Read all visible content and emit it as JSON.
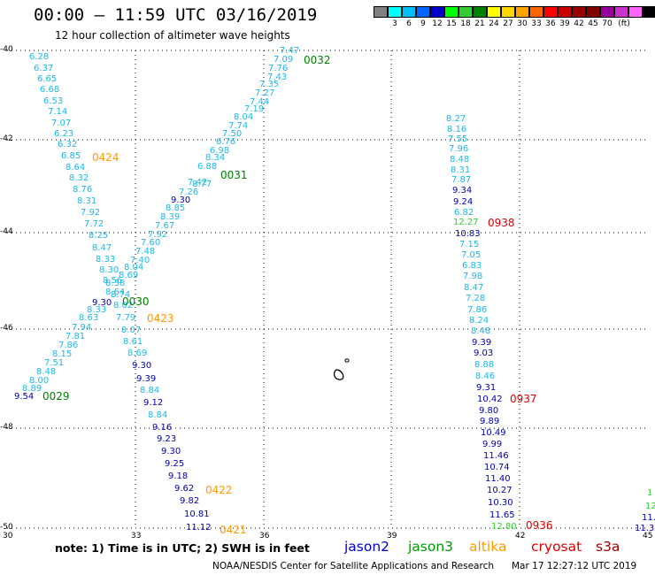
{
  "header": {
    "title": "00:00 – 11:59 UTC 03/16/2019",
    "subtitle": "12 hour collection of altimeter wave heights"
  },
  "colorbar": {
    "segments": [
      "#808080",
      "#00ffff",
      "#00bfff",
      "#0066ff",
      "#0000cd",
      "#00ff00",
      "#33cc33",
      "#008000",
      "#ffff00",
      "#ffd700",
      "#ffa500",
      "#ff6600",
      "#ff0000",
      "#cc0000",
      "#990000",
      "#800000",
      "#990099",
      "#cc33cc",
      "#ff66ff",
      "#000000"
    ],
    "labels": [
      "3",
      "6",
      "9",
      "12",
      "15",
      "18",
      "21",
      "24",
      "27",
      "30",
      "33",
      "36",
      "39",
      "42",
      "45",
      "70",
      "(ft)"
    ]
  },
  "map": {
    "lat_ticks": [
      "-40",
      "-42",
      "-44",
      "-46",
      "-48",
      "-50"
    ],
    "lon_ticks": [
      "30",
      "33",
      "36",
      "39",
      "42",
      "45"
    ],
    "colors": {
      "light_blue": "#1ab8e8",
      "dark_blue": "#0000aa",
      "green": "#008000",
      "light_green": "#33cc33",
      "orange": "#ff9900",
      "red": "#dd0000"
    },
    "tracks": [
      {
        "name": "track-a",
        "values": [
          {
            "v": "6.28",
            "c": "light_blue"
          },
          {
            "v": "6.37",
            "c": "light_blue"
          },
          {
            "v": "6.65",
            "c": "light_blue"
          },
          {
            "v": "6.68",
            "c": "light_blue"
          },
          {
            "v": "6.53",
            "c": "light_blue"
          },
          {
            "v": "7.14",
            "c": "light_blue"
          },
          {
            "v": "7.07",
            "c": "light_blue"
          },
          {
            "v": "6.23",
            "c": "light_blue"
          },
          {
            "v": "6.32",
            "c": "light_blue"
          },
          {
            "v": "6.85",
            "c": "light_blue"
          },
          {
            "v": "8.64",
            "c": "light_blue"
          },
          {
            "v": "8.32",
            "c": "light_blue"
          },
          {
            "v": "8.76",
            "c": "light_blue"
          },
          {
            "v": "8.31",
            "c": "light_blue"
          },
          {
            "v": "7.92",
            "c": "light_blue"
          },
          {
            "v": "7.72",
            "c": "light_blue"
          },
          {
            "v": "8.25",
            "c": "light_blue"
          },
          {
            "v": "8.47",
            "c": "light_blue"
          },
          {
            "v": "8.33",
            "c": "light_blue"
          },
          {
            "v": "8.30",
            "c": "light_blue"
          },
          {
            "v": "8.56",
            "c": "light_blue"
          },
          {
            "v": "8.64",
            "c": "light_blue"
          },
          {
            "v": "8.02",
            "c": "light_blue"
          },
          {
            "v": "7.79",
            "c": "light_blue"
          },
          {
            "v": "8.07",
            "c": "light_blue"
          },
          {
            "v": "8.61",
            "c": "light_blue"
          },
          {
            "v": "8.69",
            "c": "light_blue"
          },
          {
            "v": "9.30",
            "c": "dark_blue"
          },
          {
            "v": "9.39",
            "c": "dark_blue"
          },
          {
            "v": "8.84",
            "c": "light_blue"
          },
          {
            "v": "9.12",
            "c": "dark_blue"
          },
          {
            "v": "8.84",
            "c": "light_blue"
          },
          {
            "v": "9.16",
            "c": "dark_blue"
          },
          {
            "v": "9.23",
            "c": "dark_blue"
          },
          {
            "v": "9.30",
            "c": "dark_blue"
          },
          {
            "v": "9.25",
            "c": "dark_blue"
          },
          {
            "v": "9.18",
            "c": "dark_blue"
          },
          {
            "v": "9.62",
            "c": "dark_blue"
          },
          {
            "v": "9.82",
            "c": "dark_blue"
          },
          {
            "v": "10.81",
            "c": "dark_blue"
          },
          {
            "v": "11.12",
            "c": "dark_blue"
          }
        ]
      },
      {
        "name": "track-b",
        "values": [
          {
            "v": "7.47",
            "c": "light_blue"
          },
          {
            "v": "7.09",
            "c": "light_blue"
          },
          {
            "v": "7.76",
            "c": "light_blue"
          },
          {
            "v": "7.43",
            "c": "light_blue"
          },
          {
            "v": "7.35",
            "c": "light_blue"
          },
          {
            "v": "7.27",
            "c": "light_blue"
          },
          {
            "v": "7.44",
            "c": "light_blue"
          },
          {
            "v": "7.19",
            "c": "light_blue"
          },
          {
            "v": "8.04",
            "c": "light_blue"
          },
          {
            "v": "7.74",
            "c": "light_blue"
          },
          {
            "v": "7.50",
            "c": "light_blue"
          },
          {
            "v": "6.76",
            "c": "light_blue"
          },
          {
            "v": "6.98",
            "c": "light_blue"
          },
          {
            "v": "8.34",
            "c": "light_blue"
          },
          {
            "v": "6.88",
            "c": "light_blue"
          },
          {
            "v": "8.77",
            "c": "light_blue"
          },
          {
            "v": "7.42",
            "c": "light_blue"
          },
          {
            "v": "7.26",
            "c": "light_blue"
          },
          {
            "v": "9.30",
            "c": "dark_blue"
          },
          {
            "v": "8.85",
            "c": "light_blue"
          },
          {
            "v": "8.39",
            "c": "light_blue"
          },
          {
            "v": "7.67",
            "c": "light_blue"
          },
          {
            "v": "7.92",
            "c": "light_blue"
          },
          {
            "v": "7.60",
            "c": "light_blue"
          },
          {
            "v": "7.48",
            "c": "light_blue"
          },
          {
            "v": "7.40",
            "c": "light_blue"
          },
          {
            "v": "8.04",
            "c": "light_blue"
          },
          {
            "v": "8.69",
            "c": "light_blue"
          },
          {
            "v": "8.38",
            "c": "light_blue"
          },
          {
            "v": "8.74",
            "c": "light_blue"
          },
          {
            "v": "9.30",
            "c": "dark_blue"
          },
          {
            "v": "8.33",
            "c": "light_blue"
          },
          {
            "v": "8.63",
            "c": "light_blue"
          },
          {
            "v": "7.94",
            "c": "light_blue"
          },
          {
            "v": "7.81",
            "c": "light_blue"
          },
          {
            "v": "7.86",
            "c": "light_blue"
          },
          {
            "v": "8.15",
            "c": "light_blue"
          },
          {
            "v": "7.51",
            "c": "light_blue"
          },
          {
            "v": "8.48",
            "c": "light_blue"
          },
          {
            "v": "8.00",
            "c": "light_blue"
          },
          {
            "v": "8.89",
            "c": "light_blue"
          },
          {
            "v": "9.54",
            "c": "dark_blue"
          }
        ]
      },
      {
        "name": "track-c",
        "values": [
          {
            "v": "8.27",
            "c": "light_blue"
          },
          {
            "v": "8.16",
            "c": "light_blue"
          },
          {
            "v": "7.55",
            "c": "light_blue"
          },
          {
            "v": "7.96",
            "c": "light_blue"
          },
          {
            "v": "8.48",
            "c": "light_blue"
          },
          {
            "v": "8.31",
            "c": "light_blue"
          },
          {
            "v": "7.87",
            "c": "light_blue"
          },
          {
            "v": "9.34",
            "c": "dark_blue"
          },
          {
            "v": "9.24",
            "c": "dark_blue"
          },
          {
            "v": "6.82",
            "c": "light_blue"
          },
          {
            "v": "12.27",
            "c": "light_green"
          },
          {
            "v": "10.83",
            "c": "dark_blue"
          },
          {
            "v": "7.15",
            "c": "light_blue"
          },
          {
            "v": "7.05",
            "c": "light_blue"
          },
          {
            "v": "6.83",
            "c": "light_blue"
          },
          {
            "v": "7.98",
            "c": "light_blue"
          },
          {
            "v": "8.47",
            "c": "light_blue"
          },
          {
            "v": "7.28",
            "c": "light_blue"
          },
          {
            "v": "7.86",
            "c": "light_blue"
          },
          {
            "v": "8.24",
            "c": "light_blue"
          },
          {
            "v": "8.48",
            "c": "light_blue"
          },
          {
            "v": "9.39",
            "c": "dark_blue"
          },
          {
            "v": "9.03",
            "c": "dark_blue"
          },
          {
            "v": "8.88",
            "c": "light_blue"
          },
          {
            "v": "8.46",
            "c": "light_blue"
          },
          {
            "v": "9.31",
            "c": "dark_blue"
          },
          {
            "v": "10.42",
            "c": "dark_blue"
          },
          {
            "v": "9.80",
            "c": "dark_blue"
          },
          {
            "v": "9.89",
            "c": "dark_blue"
          },
          {
            "v": "10.49",
            "c": "dark_blue"
          },
          {
            "v": "9.99",
            "c": "dark_blue"
          },
          {
            "v": "11.46",
            "c": "dark_blue"
          },
          {
            "v": "10.74",
            "c": "dark_blue"
          },
          {
            "v": "11.40",
            "c": "dark_blue"
          },
          {
            "v": "10.27",
            "c": "dark_blue"
          },
          {
            "v": "10.30",
            "c": "dark_blue"
          },
          {
            "v": "11.65",
            "c": "dark_blue"
          },
          {
            "v": "12.80",
            "c": "light_green"
          }
        ]
      },
      {
        "name": "track-d",
        "values": [
          {
            "v": "1",
            "c": "light_green"
          },
          {
            "v": "12",
            "c": "light_green"
          },
          {
            "v": "11.",
            "c": "dark_blue"
          },
          {
            "v": "11.3",
            "c": "dark_blue"
          }
        ]
      }
    ],
    "pass_labels": [
      {
        "t": "0032",
        "c": "green"
      },
      {
        "t": "0424",
        "c": "orange"
      },
      {
        "t": "0031",
        "c": "green"
      },
      {
        "t": "0938",
        "c": "red"
      },
      {
        "t": "0030",
        "c": "green"
      },
      {
        "t": "0423",
        "c": "orange"
      },
      {
        "t": "0029",
        "c": "green"
      },
      {
        "t": "0937",
        "c": "red"
      },
      {
        "t": "0422",
        "c": "orange"
      },
      {
        "t": "0421",
        "c": "orange"
      },
      {
        "t": "0936",
        "c": "red"
      }
    ]
  },
  "legend": {
    "note": "note: 1) Time is in UTC; 2) SWH is in feet",
    "satellites": [
      {
        "name": "jason2",
        "color": "#0000cc"
      },
      {
        "name": "jason3",
        "color": "#009900"
      },
      {
        "name": "altika",
        "color": "#ff9900"
      },
      {
        "name": "cryosat",
        "color": "#dd0000"
      },
      {
        "name": "s3a",
        "color": "#990000"
      }
    ]
  },
  "footer": {
    "credit": "NOAA/NESDIS Center for Satellite Applications and Research",
    "timestamp": "Mar 17 12:27:12 UTC 2019"
  }
}
